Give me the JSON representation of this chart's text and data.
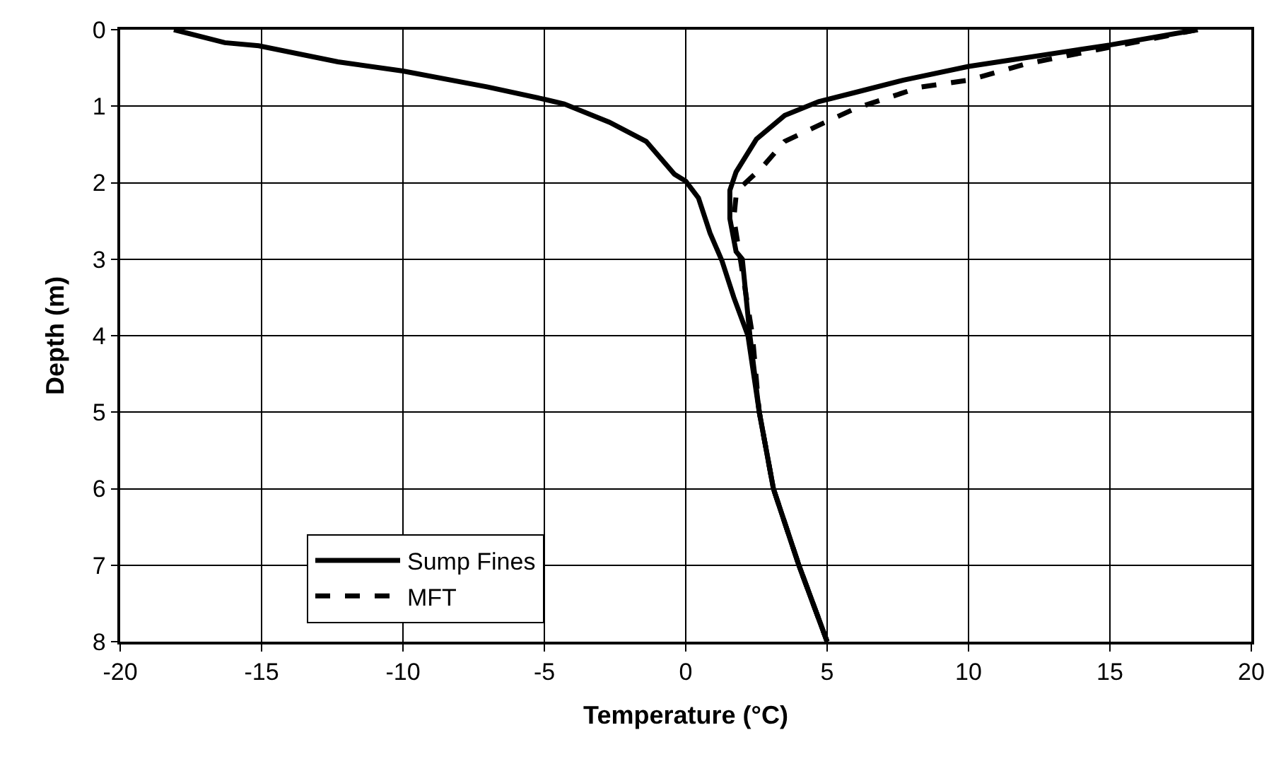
{
  "chart_data": {
    "type": "line",
    "xlabel": "Temperature (°C)",
    "ylabel": "Depth (m)",
    "xlim": [
      -20,
      20
    ],
    "xticks": [
      -20,
      -15,
      -10,
      -5,
      0,
      5,
      10,
      15,
      20
    ],
    "ylim": [
      8,
      0
    ],
    "yticks": [
      0,
      1,
      2,
      3,
      4,
      5,
      6,
      7,
      8
    ],
    "grid": true,
    "legend": "bottom left",
    "marker": "none",
    "series": [
      {
        "name": "Sump Fines",
        "color": "#000000",
        "line_style": "solid",
        "x": [
          -18.1,
          -16.3,
          -15.1,
          -12.3,
          -10.0,
          -7.0,
          -5.0,
          -4.3,
          -2.7,
          -1.4,
          -0.4,
          0.0,
          0.45,
          0.86,
          1.28,
          1.7,
          2.2,
          2.6,
          3.1,
          4.0,
          5.0
        ],
        "values": [
          0,
          0.17,
          0.21,
          0.42,
          0.54,
          0.75,
          0.91,
          0.97,
          1.21,
          1.46,
          1.89,
          1.98,
          2.2,
          2.66,
          3.02,
          3.5,
          4.0,
          5.0,
          6.0,
          7.0,
          8.0
        ]
      },
      {
        "color": "#000000",
        "line_style": "solid",
        "x": [
          18.1,
          15.0,
          10.0,
          7.7,
          6.0,
          4.7,
          3.5,
          2.5,
          1.78,
          1.56,
          1.56,
          1.78,
          2.0,
          2.27,
          2.6,
          3.1,
          4.0,
          5.0
        ],
        "values": [
          0,
          0.2,
          0.48,
          0.66,
          0.82,
          0.94,
          1.12,
          1.43,
          1.86,
          2.1,
          2.47,
          2.9,
          3.0,
          4.0,
          5.0,
          6.0,
          7.0,
          8.0
        ]
      },
      {
        "name": "MFT",
        "color": "#000000",
        "line_style": "dashed",
        "x": [
          18.1,
          15.0,
          12.0,
          10.0,
          8.3,
          6.0,
          4.7,
          3.5,
          2.7,
          2.0,
          1.78,
          1.7,
          1.94,
          2.36,
          2.6,
          3.1,
          4.0,
          5.0
        ],
        "values": [
          0,
          0.23,
          0.45,
          0.66,
          0.75,
          1.03,
          1.25,
          1.46,
          1.8,
          2.04,
          2.17,
          2.47,
          3.02,
          4.0,
          5.0,
          6.0,
          7.0,
          8.0
        ]
      }
    ]
  }
}
